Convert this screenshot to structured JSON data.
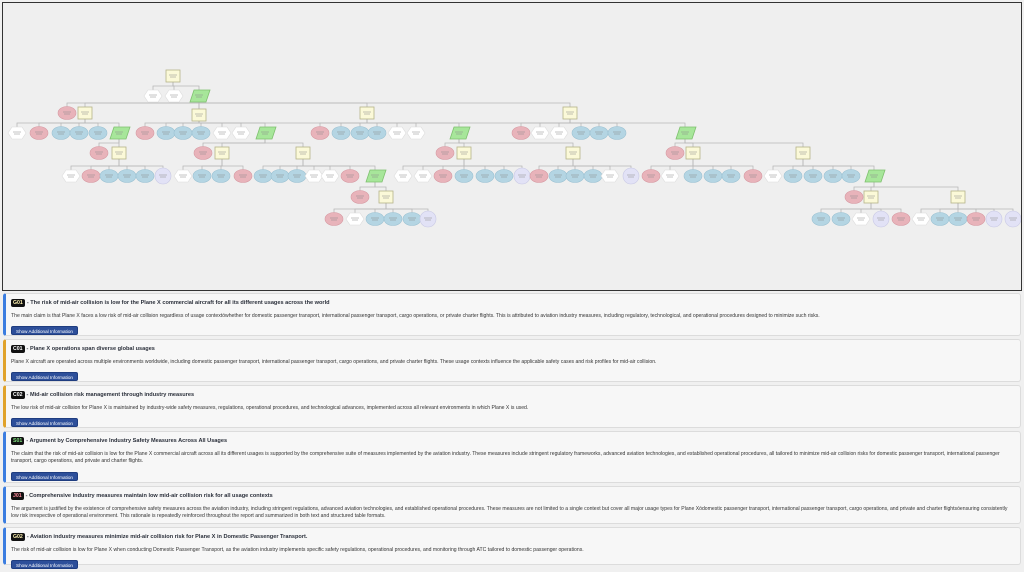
{
  "diagram": {
    "legend_colors": {
      "goal": "#fbf9d8",
      "strategy": "#a7e69a",
      "context": "#ffffff",
      "assumption": "#e8b3ba",
      "solution": "#b4d5e3",
      "undeveloped": "#e2e2f6"
    }
  },
  "cards": [
    {
      "id": "G01",
      "type": "goal",
      "title": "- The risk of mid-air collision is low for the Plane X commercial aircraft for all its different usages across the world",
      "text": "The main claim is that Plane X faces a low risk of mid-air collision regardless of usage contextówhether for domestic passenger transport, international passenger transport, cargo operations, or private charter flights. This is attributed to aviation industry measures, including regulatory, technological, and operational procedures designed to minimize such risks.",
      "button": "Show Additional Information"
    },
    {
      "id": "C01",
      "type": "context",
      "title": "- Plane X operations span diverse global usages",
      "text": "Plane X aircraft are operated across multiple environments worldwide, including domestic passenger transport, international passenger transport, cargo operations, and private charter flights. These usage contexts influence the applicable safety cases and risk profiles for mid-air collision.",
      "button": "Show Additional Information"
    },
    {
      "id": "C02",
      "type": "context",
      "title": "- Mid-air collision risk management through industry measures",
      "text": "The low risk of mid-air collision for Plane X is maintained by industry-wide safety measures, regulations, operational procedures, and technological advances, implemented across all relevant environments in which Plane X is used.",
      "button": "Show Additional Information"
    },
    {
      "id": "S01",
      "type": "strategy",
      "title": "- Argument by Comprehensive Industry Safety Measures Across All Usages",
      "text": "The claim that the risk of mid-air collision is low for the Plane X commercial aircraft across all its different usages is supported by the comprehensive suite of measures implemented by the aviation industry. These measures include stringent regulatory frameworks, advanced aviation technologies, and established operational procedures, all tailored to minimize mid-air collision risks for domestic passenger transport, international passenger transport, cargo operations, and private and charter flights.",
      "button": "Show Additional Information"
    },
    {
      "id": "J01",
      "type": "justification",
      "title": "- Comprehensive industry measures maintain low mid-air collision risk for all usage contexts",
      "text": "The argument is justified by the existence of comprehensive safety measures across the aviation industry, including stringent regulations, advanced aviation technologies, and established operational procedures. These measures are not limited to a single context but cover all major usage types for Plane Xódomestic passenger transport, international passenger transport, cargo operations, and private and charter flightsóensuring consistently low risk irrespective of operational environment. This rationale is repeatedly reinforced throughout the report and summarized in both text and structured table formats."
    },
    {
      "id": "G02",
      "type": "goal",
      "title": "- Aviation industry measures minimize mid-air collision risk for Plane X in Domestic Passenger Transport.",
      "text": "The risk of mid-air collision is low for Plane X when conducting Domestic Passenger Transport, as the aviation industry implements specific safety regulations, operational procedures, and monitoring through ATC tailored to domestic passenger operations.",
      "button": "Show Additional Information"
    }
  ]
}
